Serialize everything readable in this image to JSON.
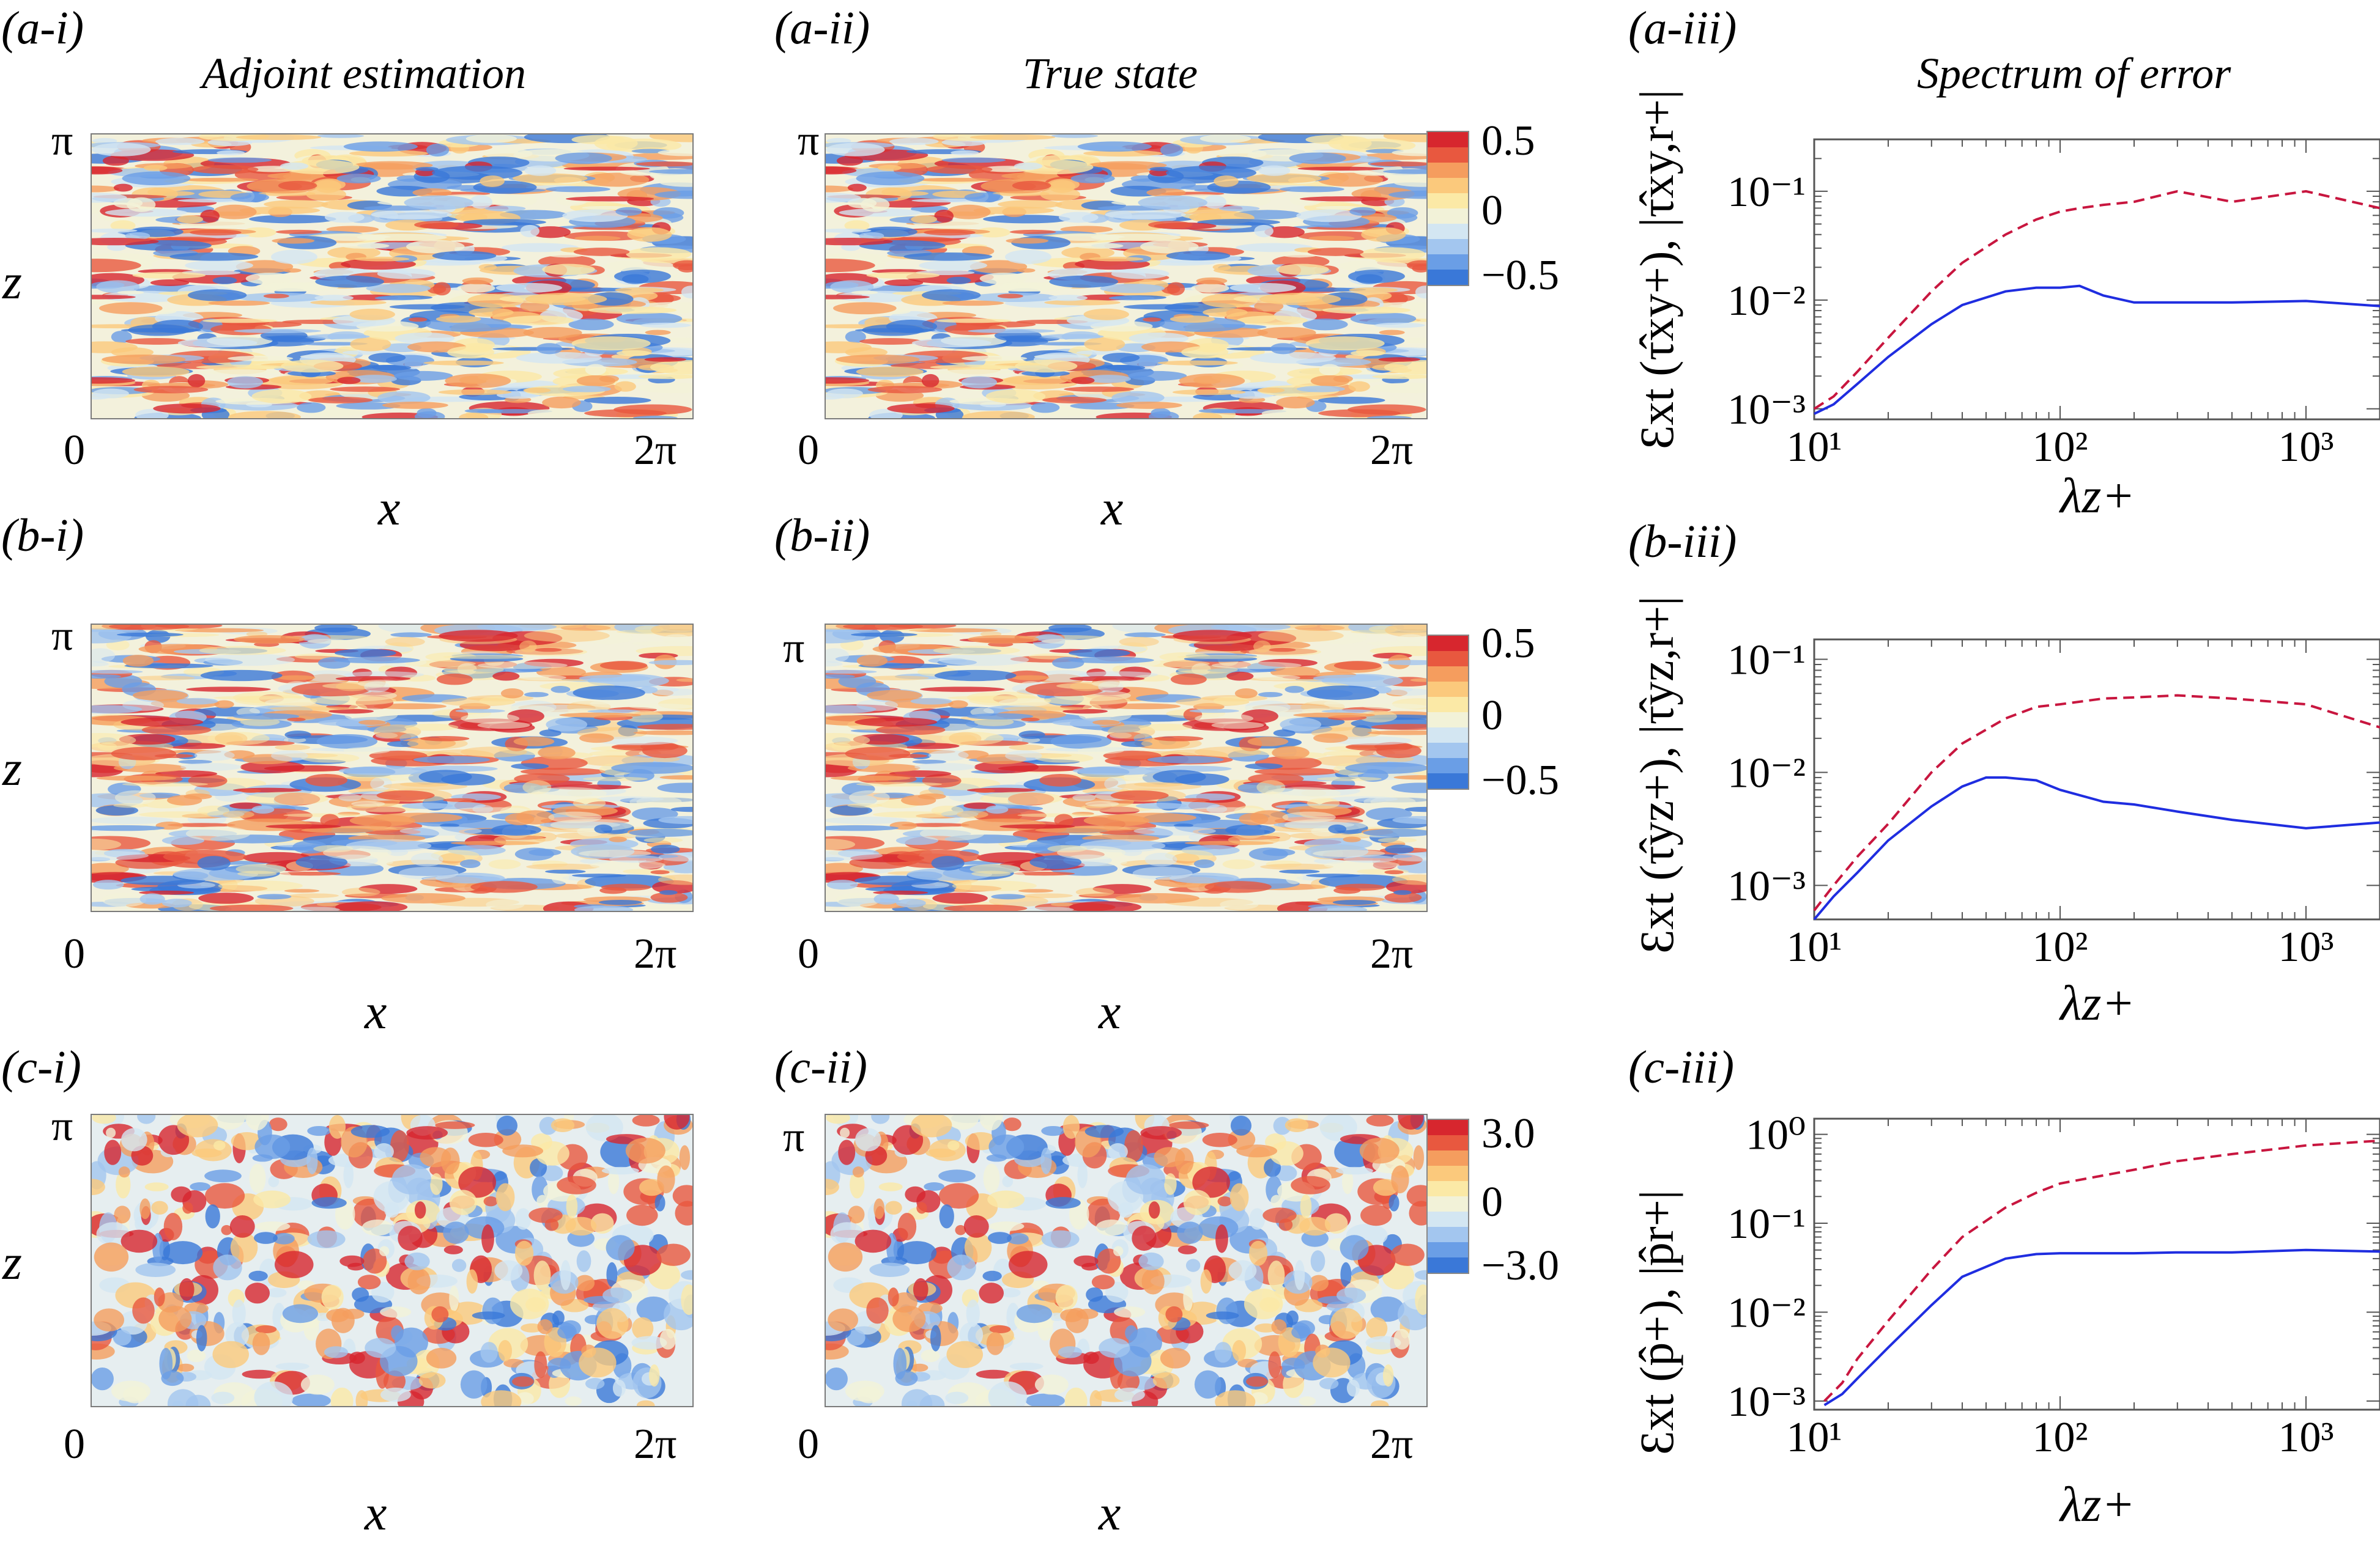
{
  "panel_labels": [
    "(a-i)",
    "(a-ii)",
    "(a-iii)",
    "(b-i)",
    "(b-ii)",
    "(b-iii)",
    "(c-i)",
    "(c-ii)",
    "(c-iii)"
  ],
  "column_titles": {
    "estimation": "Adjoint estimation",
    "truth": "True state",
    "spectrum": "Spectrum of error"
  },
  "field_axes": {
    "x_label": "x",
    "z_label": "z",
    "x_min": "0",
    "x_max": "2π",
    "z_max": "π"
  },
  "colorbars": [
    {
      "max": "0.5",
      "mid": "0",
      "min": "−0.5"
    },
    {
      "max": "0.5",
      "mid": "0",
      "min": "−0.5"
    },
    {
      "max": "3.0",
      "mid": "0",
      "min": "−3.0"
    }
  ],
  "colormap": [
    "#3a78d8",
    "#6a9ee6",
    "#a3c6ef",
    "#d3e6f2",
    "#f2f2d8",
    "#fbe9a6",
    "#fbc97c",
    "#f59d5e",
    "#e8583f",
    "#d7262e"
  ],
  "series_colors": {
    "error": "#1f2de0",
    "reference": "#c8163f"
  },
  "chart_data": [
    {
      "type": "line",
      "panel": "(a-iii)",
      "title": "",
      "xlabel": "λz+",
      "ylabel": "Ɛxt (τ̂xy+), |τ̂xy,r+|",
      "xscale": "log",
      "yscale": "log",
      "xlim": [
        10,
        2000
      ],
      "ylim": [
        0.0008,
        0.3
      ],
      "x_ticks": [
        "10¹",
        "10²",
        "10³"
      ],
      "y_ticks": [
        "10⁻³",
        "10⁻²",
        "10⁻¹"
      ],
      "series": [
        {
          "name": "error (solid)",
          "x": [
            10,
            12,
            15,
            20,
            30,
            40,
            60,
            80,
            100,
            120,
            150,
            200,
            300,
            500,
            1000,
            2000
          ],
          "y": [
            0.0009,
            0.0011,
            0.0017,
            0.003,
            0.006,
            0.009,
            0.012,
            0.013,
            0.013,
            0.0135,
            0.011,
            0.0095,
            0.0095,
            0.0095,
            0.0098,
            0.0088
          ]
        },
        {
          "name": "reference (dashed)",
          "x": [
            10,
            12,
            15,
            20,
            30,
            40,
            60,
            80,
            100,
            120,
            150,
            200,
            300,
            500,
            1000,
            2000
          ],
          "y": [
            0.001,
            0.0013,
            0.0022,
            0.0045,
            0.012,
            0.022,
            0.04,
            0.055,
            0.065,
            0.07,
            0.075,
            0.08,
            0.1,
            0.08,
            0.1,
            0.07
          ]
        }
      ]
    },
    {
      "type": "line",
      "panel": "(b-iii)",
      "title": "",
      "xlabel": "λz+",
      "ylabel": "Ɛxt (τ̂yz+), |τ̂yz,r+|",
      "xscale": "log",
      "yscale": "log",
      "xlim": [
        10,
        2000
      ],
      "ylim": [
        0.0005,
        0.15
      ],
      "x_ticks": [
        "10¹",
        "10²",
        "10³"
      ],
      "y_ticks": [
        "10⁻³",
        "10⁻²",
        "10⁻¹"
      ],
      "series": [
        {
          "name": "error (solid)",
          "x": [
            10,
            12,
            15,
            20,
            30,
            40,
            50,
            60,
            80,
            100,
            150,
            200,
            300,
            500,
            1000,
            2000
          ],
          "y": [
            0.0005,
            0.0008,
            0.0013,
            0.0025,
            0.005,
            0.0075,
            0.009,
            0.009,
            0.0085,
            0.007,
            0.0055,
            0.0052,
            0.0045,
            0.0038,
            0.0032,
            0.0036
          ]
        },
        {
          "name": "reference (dashed)",
          "x": [
            10,
            12,
            15,
            20,
            30,
            40,
            60,
            80,
            100,
            150,
            200,
            300,
            500,
            1000,
            2000
          ],
          "y": [
            0.0006,
            0.001,
            0.0018,
            0.0035,
            0.01,
            0.018,
            0.03,
            0.038,
            0.04,
            0.045,
            0.046,
            0.048,
            0.045,
            0.04,
            0.025
          ]
        }
      ]
    },
    {
      "type": "line",
      "panel": "(c-iii)",
      "title": "",
      "xlabel": "λz+",
      "ylabel": "Ɛxt (p̂+), |p̂r+|",
      "xscale": "log",
      "yscale": "log",
      "xlim": [
        10,
        2000
      ],
      "ylim": [
        0.0008,
        1.5
      ],
      "x_ticks": [
        "10¹",
        "10²",
        "10³"
      ],
      "y_ticks": [
        "10⁻³",
        "10⁻²",
        "10⁻¹",
        "10⁰"
      ],
      "series": [
        {
          "name": "error (solid)",
          "x": [
            11,
            13,
            15,
            20,
            30,
            40,
            60,
            80,
            100,
            200,
            300,
            500,
            1000,
            2000
          ],
          "y": [
            0.0009,
            0.0012,
            0.0018,
            0.004,
            0.012,
            0.025,
            0.04,
            0.045,
            0.046,
            0.046,
            0.047,
            0.047,
            0.05,
            0.048
          ]
        },
        {
          "name": "reference (dashed)",
          "x": [
            11,
            13,
            15,
            20,
            30,
            40,
            60,
            80,
            100,
            200,
            300,
            500,
            1000,
            2000
          ],
          "y": [
            0.001,
            0.0016,
            0.003,
            0.008,
            0.03,
            0.07,
            0.15,
            0.22,
            0.28,
            0.4,
            0.5,
            0.6,
            0.75,
            0.85
          ]
        }
      ]
    }
  ]
}
